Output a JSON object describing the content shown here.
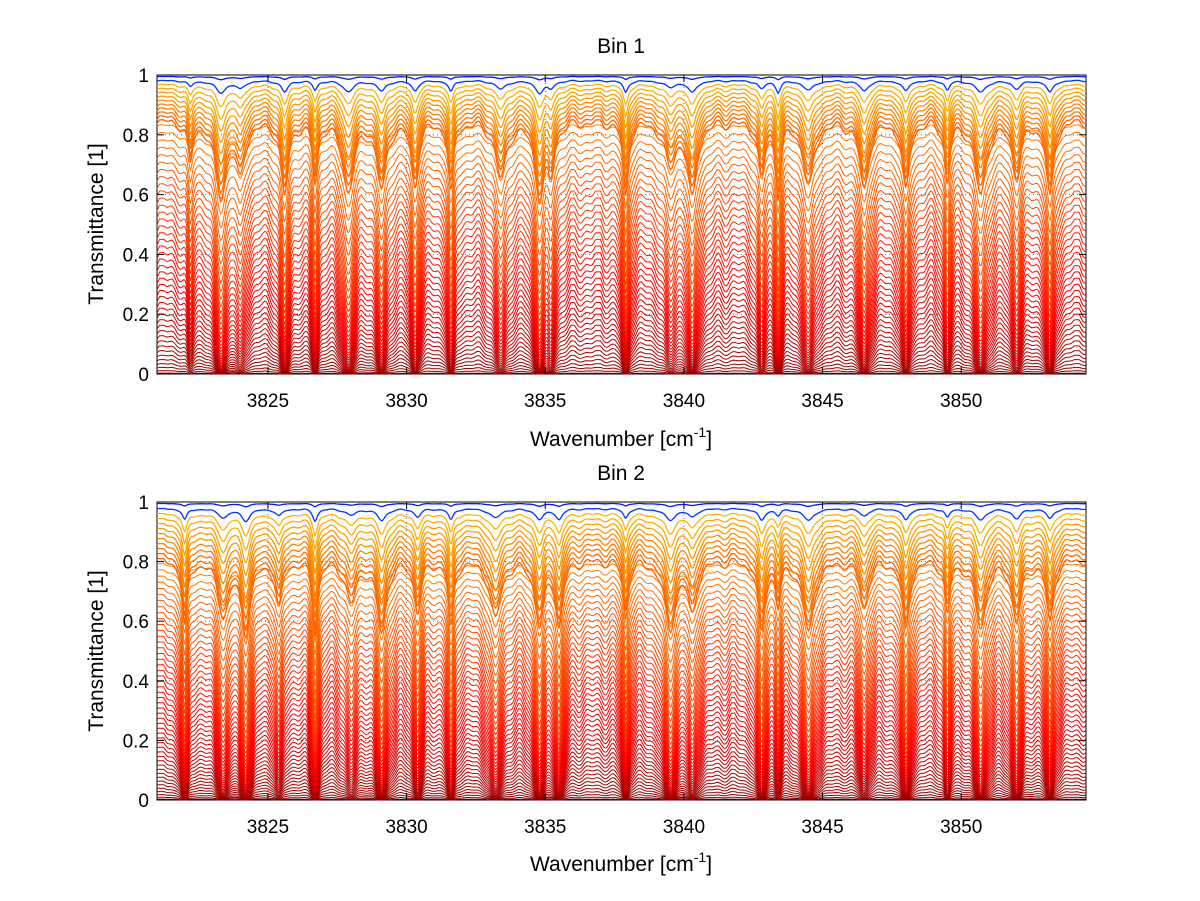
{
  "chart_data": [
    {
      "type": "line",
      "title": "Bin 1",
      "xlabel_main": "Wavenumber [cm",
      "xlabel_sup": "-1",
      "xlabel_close": "]",
      "ylabel": "Transmittance [1]",
      "xlim": [
        3821,
        3854.5
      ],
      "ylim": [
        0,
        1
      ],
      "xticks": [
        "3825",
        "3830",
        "3835",
        "3840",
        "3845",
        "3850"
      ],
      "yticks": [
        "0",
        "0.2",
        "0.4",
        "0.6",
        "0.8",
        "1"
      ],
      "grid": true,
      "grid_style": "dotted",
      "colormap": "jet",
      "series_count": 42,
      "line_center_wavenumbers": [
        3822.2,
        3823.3,
        3824.0,
        3825.6,
        3826.7,
        3827.9,
        3829.1,
        3830.3,
        3831.6,
        3833.4,
        3834.8,
        3835.2,
        3837.9,
        3839.5,
        3840.3,
        3842.8,
        3843.4,
        3844.5,
        3846.5,
        3848.0,
        3849.5,
        3850.7,
        3852.0,
        3853.2
      ],
      "plateau_level": 0.83
    },
    {
      "type": "line",
      "title": "Bin 2",
      "xlabel_main": "Wavenumber [cm",
      "xlabel_sup": "-1",
      "xlabel_close": "]",
      "ylabel": "Transmittance [1]",
      "xlim": [
        3821,
        3854.5
      ],
      "ylim": [
        0,
        1
      ],
      "xticks": [
        "3825",
        "3830",
        "3835",
        "3840",
        "3845",
        "3850"
      ],
      "yticks": [
        "0",
        "0.2",
        "0.4",
        "0.6",
        "0.8",
        "1"
      ],
      "grid": true,
      "grid_style": "dotted",
      "colormap": "jet",
      "series_count": 48,
      "line_center_wavenumbers": [
        3822.0,
        3823.4,
        3824.2,
        3825.4,
        3826.7,
        3828.0,
        3829.1,
        3830.4,
        3831.6,
        3833.2,
        3834.8,
        3835.5,
        3837.9,
        3839.5,
        3840.3,
        3842.8,
        3843.4,
        3844.5,
        3846.5,
        3848.0,
        3849.5,
        3850.7,
        3852.0,
        3853.2
      ],
      "plateau_level": 0.79
    }
  ]
}
